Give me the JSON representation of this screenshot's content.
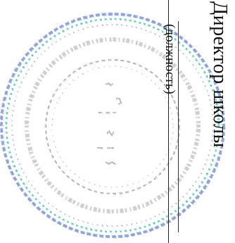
{
  "form": {
    "position": "Директор школы",
    "position_caption": "(должность)"
  },
  "stamp": {
    "ring_color": "#6b86c8",
    "accent_color": "#2fb8a8",
    "ink_color": "#8a8a8a"
  }
}
